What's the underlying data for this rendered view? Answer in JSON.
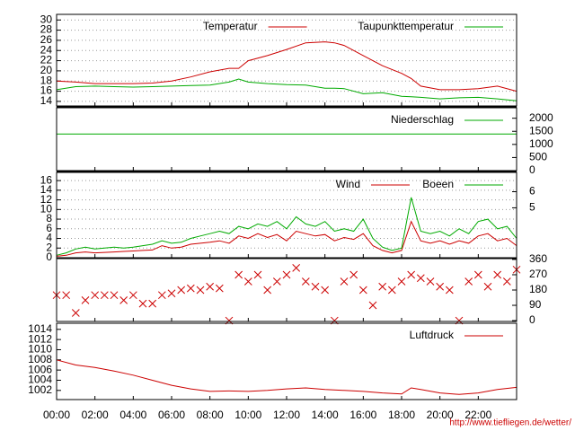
{
  "chart_data": [
    {
      "type": "line",
      "ylim": [
        13.1,
        31.1
      ],
      "yticks": [
        14,
        16,
        18,
        20,
        22,
        24,
        26,
        28,
        30
      ],
      "grid": true,
      "xlim": [
        0,
        24
      ],
      "x": [
        0,
        1,
        2,
        3,
        4,
        5,
        6,
        7,
        8,
        9,
        9.5,
        10,
        11,
        12,
        13,
        14,
        14.5,
        15,
        16,
        17,
        18,
        18.5,
        19,
        20,
        21,
        22,
        23,
        24
      ],
      "series": [
        {
          "name": "Temperatur",
          "color": "#cc0000",
          "values": [
            18.0,
            17.8,
            17.5,
            17.5,
            17.5,
            17.6,
            18.0,
            18.8,
            19.8,
            20.5,
            20.5,
            22.0,
            23.0,
            24.2,
            25.5,
            25.7,
            25.5,
            25.0,
            23.0,
            21.0,
            19.5,
            18.5,
            17.0,
            16.3,
            16.3,
            16.5,
            17.0,
            16.0
          ]
        },
        {
          "name": "Taupunkttemperatur",
          "color": "#00aa00",
          "values": [
            16.3,
            16.9,
            17.0,
            16.9,
            16.8,
            16.9,
            17.0,
            17.1,
            17.2,
            17.8,
            18.4,
            17.8,
            17.5,
            17.3,
            17.2,
            16.6,
            16.6,
            16.5,
            15.5,
            15.7,
            15.0,
            14.9,
            14.8,
            14.5,
            14.7,
            14.8,
            14.5,
            14.1
          ]
        }
      ]
    },
    {
      "type": "line",
      "y2lim": [
        0,
        2400
      ],
      "y2ticks": [
        0,
        500,
        1000,
        1500,
        2000
      ],
      "grid": false,
      "xlim": [
        0,
        24
      ],
      "x": [
        0,
        24
      ],
      "series": [
        {
          "name": "Niederschlag",
          "color": "#00aa00",
          "axis": "y2",
          "values": [
            1400,
            1400
          ]
        }
      ]
    },
    {
      "type": "line",
      "ylim": [
        0,
        17.7
      ],
      "yticks": [
        0,
        2,
        4,
        6,
        8,
        10,
        12,
        14,
        16
      ],
      "y2lim": [
        1.9,
        7.2
      ],
      "y2ticks": [
        5,
        6
      ],
      "grid": true,
      "xlim": [
        0,
        24
      ],
      "x": [
        0,
        0.5,
        1,
        1.5,
        2,
        2.5,
        3,
        3.5,
        4,
        4.5,
        5,
        5.5,
        6,
        6.5,
        7,
        7.5,
        8,
        8.5,
        9,
        9.5,
        10,
        10.5,
        11,
        11.5,
        12,
        12.5,
        13,
        13.5,
        14,
        14.5,
        15,
        15.5,
        16,
        16.5,
        17,
        17.5,
        18,
        18.5,
        19,
        19.5,
        20,
        20.5,
        21,
        21.5,
        22,
        22.5,
        23,
        23.5,
        24
      ],
      "series": [
        {
          "name": "Wind",
          "color": "#cc0000",
          "values": [
            0.3,
            0.5,
            1.0,
            1.2,
            1.0,
            1.1,
            1.2,
            1.3,
            1.4,
            1.5,
            1.6,
            2.5,
            2.0,
            2.2,
            2.8,
            3.0,
            3.2,
            3.5,
            3.0,
            4.5,
            4.0,
            5.0,
            4.2,
            4.8,
            3.5,
            5.5,
            5.0,
            4.5,
            4.8,
            3.5,
            4.2,
            3.8,
            5.0,
            2.5,
            1.5,
            1.0,
            1.5,
            7.5,
            3.5,
            3.0,
            3.5,
            2.8,
            3.5,
            3.0,
            4.5,
            5.0,
            3.5,
            4.0,
            2.5
          ]
        },
        {
          "name": "Boeen",
          "color": "#00aa00",
          "values": [
            0.5,
            1.0,
            1.8,
            2.2,
            1.8,
            2.0,
            2.2,
            2.0,
            2.2,
            2.5,
            2.8,
            3.5,
            3.0,
            3.2,
            4.0,
            4.5,
            5.0,
            5.5,
            5.0,
            6.5,
            6.0,
            7.0,
            6.5,
            7.5,
            6.0,
            8.5,
            7.0,
            6.5,
            7.5,
            5.5,
            6.0,
            5.5,
            8.0,
            4.0,
            2.2,
            1.5,
            2.0,
            12.5,
            5.5,
            5.0,
            5.5,
            4.5,
            6.0,
            5.0,
            7.5,
            8.0,
            6.0,
            6.5,
            4.0
          ]
        }
      ]
    },
    {
      "type": "scatter",
      "y2lim": [
        -5,
        365
      ],
      "y2ticks": [
        0,
        90,
        180,
        270,
        360
      ],
      "grid": false,
      "xlim": [
        0,
        24
      ],
      "x": [
        0,
        0.5,
        1,
        1.5,
        2,
        2.5,
        3,
        3.5,
        4,
        4.5,
        5,
        5.5,
        6,
        6.5,
        7,
        7.5,
        8,
        8.5,
        9,
        9.5,
        10,
        10.5,
        11,
        11.5,
        12,
        12.5,
        13,
        13.5,
        14,
        14.5,
        15,
        15.5,
        16,
        16.5,
        17,
        17.5,
        18,
        18.5,
        19,
        19.5,
        20,
        20.5,
        21,
        21.5,
        22,
        22.5,
        23,
        23.5,
        24
      ],
      "series": [
        {
          "color": "#cc0000",
          "axis": "y2",
          "values": [
            150,
            150,
            45,
            120,
            150,
            150,
            150,
            120,
            150,
            100,
            100,
            150,
            160,
            180,
            190,
            180,
            200,
            190,
            0,
            270,
            230,
            270,
            180,
            230,
            270,
            310,
            230,
            200,
            180,
            0,
            230,
            270,
            180,
            90,
            200,
            180,
            230,
            270,
            250,
            230,
            200,
            180,
            0,
            230,
            270,
            200,
            270,
            230,
            300
          ]
        }
      ]
    },
    {
      "type": "line",
      "ylim": [
        1000.2,
        1015.2
      ],
      "yticks": [
        1002,
        1004,
        1006,
        1008,
        1010,
        1012,
        1014
      ],
      "grid": false,
      "xlim": [
        0,
        24
      ],
      "xticks": [
        {
          "value": 0,
          "label": "00:00"
        },
        {
          "value": 2,
          "label": "02:00"
        },
        {
          "value": 4,
          "label": "04:00"
        },
        {
          "value": 6,
          "label": "06:00"
        },
        {
          "value": 8,
          "label": "08:00"
        },
        {
          "value": 10,
          "label": "10:00"
        },
        {
          "value": 12,
          "label": "12:00"
        },
        {
          "value": 14,
          "label": "14:00"
        },
        {
          "value": 16,
          "label": "16:00"
        },
        {
          "value": 18,
          "label": "18:00"
        },
        {
          "value": 20,
          "label": "20:00"
        },
        {
          "value": 22,
          "label": "22:00"
        }
      ],
      "x": [
        0,
        1,
        2,
        3,
        4,
        5,
        6,
        7,
        8,
        9,
        10,
        11,
        12,
        13,
        14,
        15,
        16,
        17,
        18,
        18.5,
        19,
        20,
        21,
        22,
        23,
        24
      ],
      "series": [
        {
          "name": "Luftdruck",
          "color": "#cc0000",
          "values": [
            1008,
            1007,
            1006.5,
            1005.8,
            1005,
            1004,
            1003,
            1002.3,
            1001.8,
            1001.9,
            1001.8,
            1002,
            1002.3,
            1002.5,
            1002.2,
            1002,
            1001.8,
            1001.5,
            1001.3,
            1002.5,
            1002.2,
            1001.5,
            1001.2,
            1001.5,
            1002.2,
            1002.6
          ]
        }
      ]
    }
  ],
  "source": "http://www.tiefliegen.de/wetter/"
}
